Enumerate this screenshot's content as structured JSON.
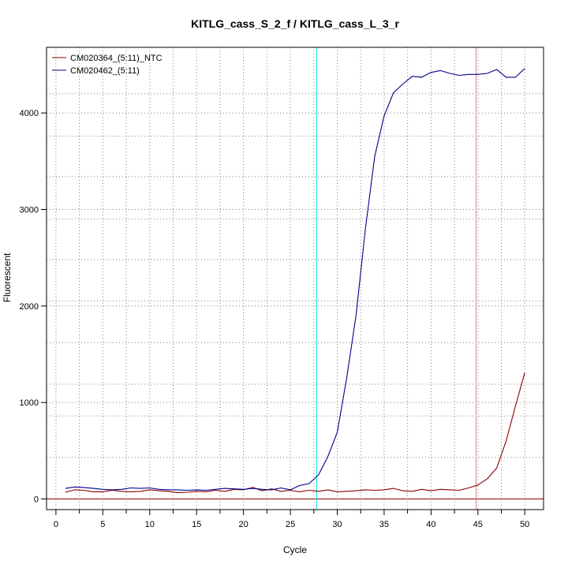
{
  "chart_data": {
    "type": "line",
    "title": "KITLG_cass_S_2_f / KITLG_cass_L_3_r",
    "xlabel": "Cycle",
    "ylabel": "Fluorescent",
    "xlim": [
      -1,
      52
    ],
    "ylim": [
      -110,
      4680
    ],
    "x_ticks": [
      0,
      5,
      10,
      15,
      20,
      25,
      30,
      35,
      40,
      45,
      50
    ],
    "x_minor_ticks": [
      2.5,
      7.5,
      12.5,
      17.5,
      22.5,
      27.5,
      32.5,
      37.5,
      42.5,
      47.5
    ],
    "y_ticks": [
      0,
      1000,
      2000,
      3000,
      4000
    ],
    "y_tick_labels": [
      "0",
      "1000",
      "2000",
      "3000",
      "4000"
    ],
    "grid": true,
    "grid_x": [
      0,
      2.5,
      5,
      7.5,
      10,
      12.5,
      15,
      17.5,
      20,
      22.5,
      25,
      27.5,
      30,
      32.5,
      35,
      37.5,
      40,
      42.5,
      45,
      47.5,
      50
    ],
    "grid_y": [
      0,
      430,
      860,
      1000,
      1190,
      1620,
      2000,
      2050,
      2480,
      2900,
      3000,
      3340,
      3760,
      4000,
      4200
    ],
    "legend_position": "top-left",
    "x": [
      1,
      2,
      3,
      4,
      5,
      6,
      7,
      8,
      9,
      10,
      11,
      12,
      13,
      14,
      15,
      16,
      17,
      18,
      19,
      20,
      21,
      22,
      23,
      24,
      25,
      26,
      27,
      28,
      29,
      30,
      31,
      32,
      33,
      34,
      35,
      36,
      37,
      38,
      39,
      40,
      41,
      42,
      43,
      44,
      45,
      46,
      47,
      48,
      49,
      50
    ],
    "series": [
      {
        "name": "CM020364_(5:11)_NTC",
        "color": "#8b0000",
        "values": [
          70,
          95,
          90,
          75,
          75,
          90,
          80,
          75,
          80,
          95,
          85,
          80,
          65,
          70,
          80,
          75,
          90,
          80,
          100,
          95,
          120,
          85,
          105,
          80,
          90,
          75,
          90,
          80,
          95,
          75,
          80,
          85,
          95,
          90,
          95,
          110,
          85,
          80,
          100,
          85,
          100,
          95,
          90,
          115,
          145,
          210,
          320,
          600,
          960,
          1310
        ]
      },
      {
        "name": "CM020462_(5:11)",
        "color": "#00008b",
        "values": [
          110,
          125,
          120,
          110,
          100,
          95,
          100,
          115,
          110,
          115,
          100,
          95,
          95,
          90,
          95,
          90,
          100,
          110,
          105,
          100,
          110,
          100,
          95,
          115,
          95,
          140,
          160,
          250,
          440,
          690,
          1250,
          1900,
          2800,
          3550,
          3970,
          4210,
          4300,
          4380,
          4370,
          4420,
          4440,
          4410,
          4390,
          4400,
          4400,
          4410,
          4450,
          4370,
          4370,
          4460
        ]
      }
    ],
    "vertical_lines": [
      {
        "x": 27.8,
        "color": "#00e5ee"
      },
      {
        "x": 44.8,
        "color": "#e88080"
      }
    ],
    "horizontal_lines": [
      {
        "y": 0,
        "color": "#8b0000"
      }
    ]
  }
}
